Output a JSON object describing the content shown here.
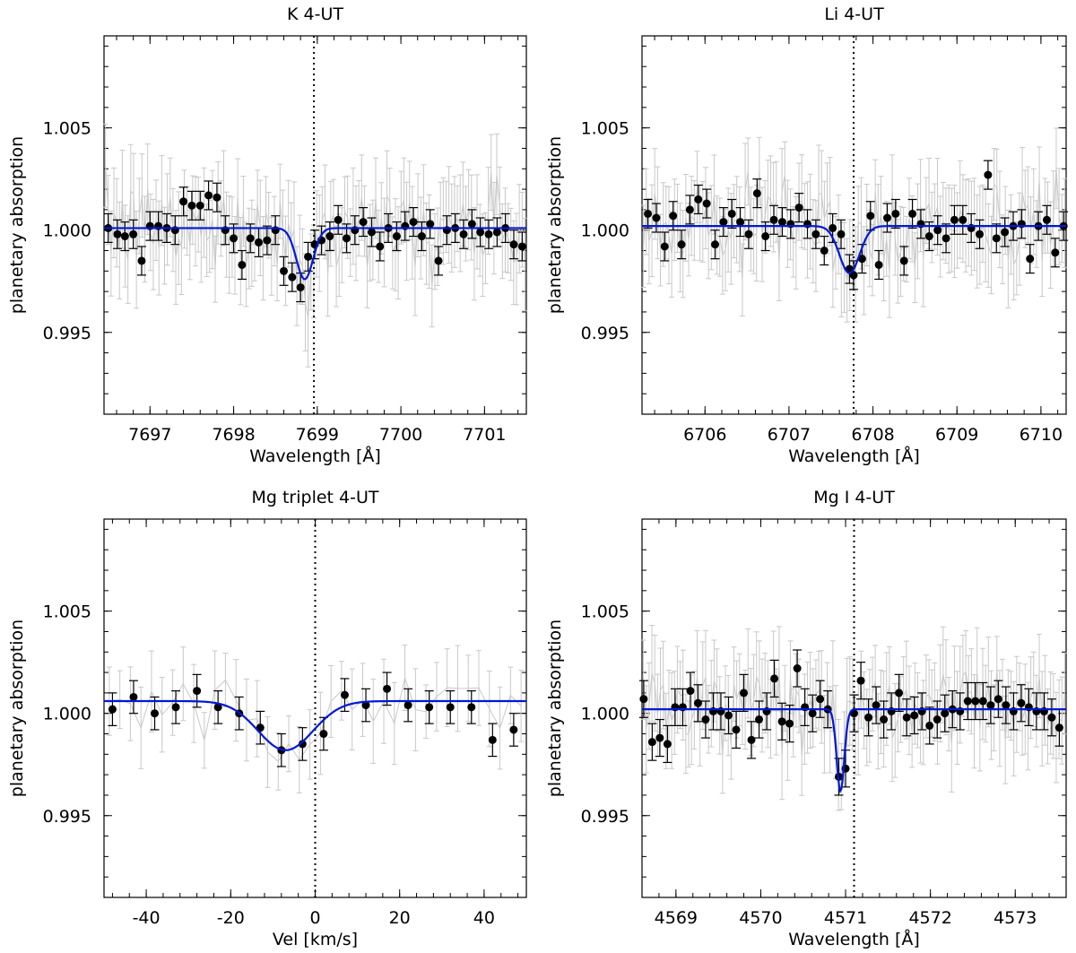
{
  "chart_data": [
    {
      "type": "scatter",
      "title": "K 4-UT",
      "xlabel": "Wavelength [Å]",
      "ylabel": "planetary absorption",
      "xlim": [
        7696.45,
        7701.5
      ],
      "ylim": [
        0.991,
        1.0095
      ],
      "xticks": [
        7697,
        7698,
        7699,
        7700,
        7701
      ],
      "xtick_labels": [
        "7697",
        "7698",
        "7699",
        "7700",
        "7701"
      ],
      "yticks": [
        0.995,
        1.0,
        1.005
      ],
      "ytick_labels": [
        "0.995",
        "1.000",
        "1.005"
      ],
      "line_center": 7698.96,
      "fit": {
        "baseline": 1.0001,
        "depth": 0.0025,
        "center": 7698.85,
        "sigma": 0.1
      },
      "binned": {
        "x": [
          7696.5,
          7696.61,
          7696.7,
          7696.8,
          7696.9,
          7697.0,
          7697.1,
          7697.2,
          7697.3,
          7697.4,
          7697.5,
          7697.6,
          7697.7,
          7697.8,
          7697.9,
          7698.0,
          7698.1,
          7698.2,
          7698.3,
          7698.4,
          7698.5,
          7698.6,
          7698.7,
          7698.8,
          7698.89,
          7698.97,
          7699.05,
          7699.15,
          7699.25,
          7699.35,
          7699.45,
          7699.55,
          7699.65,
          7699.75,
          7699.85,
          7699.95,
          7700.05,
          7700.15,
          7700.25,
          7700.35,
          7700.45,
          7700.55,
          7700.65,
          7700.75,
          7700.85,
          7700.95,
          7701.05,
          7701.15,
          7701.25,
          7701.35,
          7701.45
        ],
        "y": [
          1.0001,
          0.9998,
          0.9997,
          0.9998,
          0.9985,
          1.0002,
          1.0002,
          1.0001,
          1.0,
          1.0014,
          1.0012,
          1.0012,
          1.0017,
          1.0016,
          1.0,
          0.9996,
          0.9983,
          0.9996,
          0.9994,
          0.9995,
          1.0,
          0.998,
          0.9977,
          0.9972,
          0.9987,
          0.9993,
          0.9995,
          0.9997,
          1.0005,
          0.9996,
          1.0,
          1.0004,
          0.9999,
          0.9992,
          1.0001,
          0.9997,
          1.0002,
          1.0004,
          0.9997,
          1.0003,
          0.9985,
          1.0,
          1.0001,
          0.9998,
          1.0003,
          0.9999,
          0.9998,
          0.9999,
          1.0001,
          0.9993,
          0.9992
        ],
        "err": 0.0007
      }
    },
    {
      "type": "scatter",
      "title": "Li 4-UT",
      "xlabel": "Wavelength [Å]",
      "ylabel": "planetary absorption",
      "xlim": [
        6705.25,
        6710.3
      ],
      "ylim": [
        0.991,
        1.0095
      ],
      "xticks": [
        6706,
        6707,
        6708,
        6709,
        6710
      ],
      "xtick_labels": [
        "6706",
        "6707",
        "6708",
        "6709",
        "6710"
      ],
      "yticks": [
        0.995,
        1.0,
        1.005
      ],
      "ytick_labels": [
        "0.995",
        "1.000",
        "1.005"
      ],
      "line_center": 6707.77,
      "fit": {
        "baseline": 1.0002,
        "depth": 0.0023,
        "center": 6707.72,
        "sigma": 0.12
      },
      "binned": {
        "x": [
          6705.32,
          6705.42,
          6705.52,
          6705.62,
          6705.72,
          6705.82,
          6705.92,
          6706.02,
          6706.12,
          6706.22,
          6706.32,
          6706.42,
          6706.52,
          6706.62,
          6706.72,
          6706.82,
          6706.92,
          6707.02,
          6707.12,
          6707.22,
          6707.32,
          6707.42,
          6707.52,
          6707.62,
          6707.72,
          6707.77,
          6707.87,
          6707.97,
          6708.07,
          6708.17,
          6708.27,
          6708.37,
          6708.47,
          6708.57,
          6708.67,
          6708.77,
          6708.87,
          6708.97,
          6709.07,
          6709.17,
          6709.27,
          6709.37,
          6709.47,
          6709.57,
          6709.67,
          6709.77,
          6709.87,
          6709.97,
          6710.07,
          6710.17,
          6710.27
        ],
        "y": [
          1.0008,
          1.0006,
          0.9992,
          1.0007,
          0.9993,
          1.001,
          1.0015,
          1.0013,
          0.9993,
          1.0004,
          1.0008,
          1.0004,
          0.9998,
          1.0018,
          0.9997,
          1.0005,
          1.0004,
          1.0003,
          1.0011,
          1.0003,
          0.9998,
          0.999,
          1.0001,
          0.9998,
          0.9981,
          0.9978,
          0.9986,
          1.0007,
          0.9983,
          1.0006,
          1.0008,
          0.9985,
          1.0008,
          1.0003,
          0.9997,
          1.0,
          0.9996,
          1.0005,
          1.0005,
          1.0001,
          0.9998,
          1.0027,
          0.9996,
          0.9999,
          1.0002,
          1.0003,
          0.9986,
          1.0002,
          1.0005,
          0.9989,
          1.0002
        ],
        "err": 0.0007
      }
    },
    {
      "type": "scatter",
      "title": "Mg triplet 4-UT",
      "xlabel": "Vel [km/s]",
      "ylabel": "planetary absorption",
      "xlim": [
        -50,
        50
      ],
      "ylim": [
        0.991,
        1.0095
      ],
      "xticks": [
        -40,
        -20,
        0,
        20,
        40
      ],
      "xtick_labels": [
        "-40",
        "-20",
        "0",
        "20",
        "40"
      ],
      "yticks": [
        0.995,
        1.0,
        1.005
      ],
      "ytick_labels": [
        "0.995",
        "1.000",
        "1.005"
      ],
      "line_center": 0,
      "fit": {
        "baseline": 1.0006,
        "depth": 0.0024,
        "center": -7,
        "sigma": 6.5
      },
      "binned": {
        "x": [
          -48,
          -43,
          -38,
          -33,
          -28,
          -23,
          -18,
          -13,
          -8,
          -3,
          2,
          7,
          12,
          17,
          22,
          27,
          32,
          37,
          42,
          47
        ],
        "y": [
          1.0002,
          1.0008,
          1.0,
          1.0003,
          1.0011,
          1.0003,
          1.0,
          0.9993,
          0.9982,
          0.9985,
          0.999,
          1.0009,
          1.0004,
          1.0012,
          1.0004,
          1.0003,
          1.0003,
          1.0003,
          0.9987,
          0.9992
        ],
        "err": 0.0008
      }
    },
    {
      "type": "scatter",
      "title": "Mg I 4-UT",
      "xlabel": "Wavelength [Å]",
      "ylabel": "planetary absorption",
      "xlim": [
        4568.6,
        4573.6
      ],
      "ylim": [
        0.991,
        1.0095
      ],
      "xticks": [
        4569,
        4570,
        4571,
        4572,
        4573
      ],
      "xtick_labels": [
        "4569",
        "4570",
        "4571",
        "4572",
        "4573"
      ],
      "yticks": [
        0.995,
        1.0,
        1.005
      ],
      "ytick_labels": [
        "0.995",
        "1.000",
        "1.005"
      ],
      "line_center": 4571.1,
      "fit": {
        "baseline": 1.0002,
        "depth": 0.004,
        "center": 4570.94,
        "sigma": 0.045
      },
      "binned": {
        "x": [
          4568.62,
          4568.72,
          4568.81,
          4568.9,
          4568.99,
          4569.08,
          4569.17,
          4569.26,
          4569.35,
          4569.44,
          4569.53,
          4569.62,
          4569.71,
          4569.8,
          4569.89,
          4569.98,
          4570.07,
          4570.16,
          4570.25,
          4570.34,
          4570.43,
          4570.52,
          4570.61,
          4570.7,
          4570.79,
          4570.92,
          4571.0,
          4571.1,
          4571.18,
          4571.27,
          4571.36,
          4571.45,
          4571.54,
          4571.63,
          4571.72,
          4571.81,
          4571.9,
          4571.99,
          4572.08,
          4572.17,
          4572.26,
          4572.35,
          4572.44,
          4572.53,
          4572.62,
          4572.71,
          4572.8,
          4572.89,
          4572.98,
          4573.07,
          4573.16,
          4573.25,
          4573.34,
          4573.43,
          4573.52
        ],
        "y": [
          1.0007,
          0.9986,
          0.9988,
          0.9985,
          1.0003,
          1.0003,
          1.0011,
          1.0005,
          0.9997,
          1.0001,
          1.0001,
          0.9999,
          0.9992,
          1.001,
          0.9987,
          0.9997,
          1.0001,
          1.0017,
          0.9996,
          0.9995,
          1.0022,
          1.0003,
          1.0,
          1.0007,
          1.0002,
          0.9969,
          0.9973,
          1.0,
          1.0016,
          0.9998,
          1.0004,
          0.9997,
          1.0001,
          1.001,
          0.9998,
          0.9999,
          1.0001,
          0.9994,
          0.9997,
          1.0,
          1.0002,
          1.0001,
          1.0006,
          1.0006,
          1.0006,
          1.0004,
          1.0007,
          1.0004,
          1.0001,
          1.0005,
          1.0003,
          1.0001,
          1.0001,
          0.9998,
          0.9993
        ],
        "err": 0.0009
      }
    }
  ]
}
